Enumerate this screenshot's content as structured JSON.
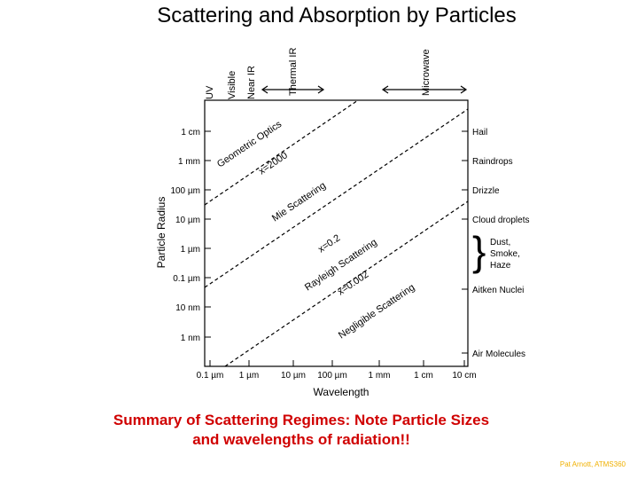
{
  "title": "Scattering and Absorption by Particles",
  "caption": {
    "line1": "Summary of Scattering Regimes: Note Particle Sizes",
    "line2": "and wavelengths of radiation!!"
  },
  "credit": "Pat Arnott, ATMS360",
  "diagram": {
    "x_axis_label": "Wavelength",
    "y_axis_label": "Particle Radius",
    "x_ticks": [
      "0.1 µm",
      "1 µm",
      "10 µm",
      "100 µm",
      "1 mm",
      "1 cm",
      "10 cm"
    ],
    "y_ticks": [
      "1 cm",
      "1 mm",
      "100 µm",
      "10 µm",
      "1 µm",
      "0.1 µm",
      "10 nm",
      "1 nm"
    ],
    "spectrum_bands": [
      "UV",
      "Visible",
      "Near IR",
      "Thermal IR",
      "Microwave"
    ],
    "particle_types": [
      "Hail",
      "Raindrops",
      "Drizzle",
      "Cloud droplets",
      "Dust,",
      "Smoke,",
      "Haze",
      "Aitken Nuclei",
      "Air Molecules"
    ],
    "regimes": {
      "geometric": "Geometric Optics",
      "x2000": "x=2000",
      "mie": "Mie Scattering",
      "x02": "x=0.2",
      "rayleigh": "Rayleigh Scattering",
      "x0002": "x=0.002",
      "negligible": "Negligible Scattering"
    }
  }
}
